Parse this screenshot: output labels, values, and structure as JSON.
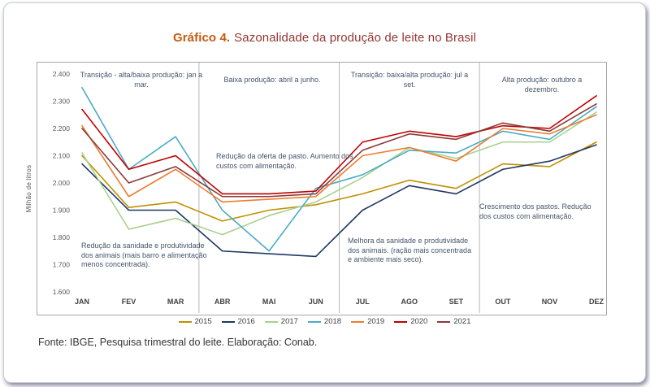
{
  "title": {
    "prefix": "Gráfico 4.",
    "text": "Sazonalidade da produção de leite no Brasil",
    "prefix_color": "#C55A11",
    "text_color": "#943634"
  },
  "footer": {
    "source": "Fonte: IBGE, Pesquisa trimestral do leite. Elaboração: Conab."
  },
  "annotations": {
    "q1_top": "Transição - alta/baixa produção: jan a mar.",
    "q2_top": "Baixa produção: abril a junho.",
    "q3_top": "Transição: baixa/alta produção: jul a set.",
    "q4_top": "Alta produção: outubro a dezembro.",
    "q1_bottom": "Redução da sanidade e produtividade dos animais (mais barro e alimentação menos concentrada).",
    "q2_mid": "Redução da oferta de pasto. Aumento dos custos com alimentação.",
    "q3_bottom": "Melhora da sanidade e produtividade dos animais. (ração mais concentrada e ambiente mais seco).",
    "q4_mid": "Crescimento dos pastos. Redução dos custos com alimentação."
  },
  "chart_data": {
    "type": "line",
    "title": "Gráfico 4. Sazonalidade da produção de leite no Brasil",
    "xlabel": "",
    "ylabel": "Milhão de litros",
    "ylim": [
      1600,
      2400
    ],
    "ytick_labels": [
      "2.400",
      "2.300",
      "2.200",
      "2.100",
      "2.000",
      "1.900",
      "1.800",
      "1.700",
      "1.600"
    ],
    "grid": false,
    "legend_position": "bottom",
    "quarter_dividers_after": [
      "MAR",
      "JUN",
      "SET"
    ],
    "categories": [
      "JAN",
      "FEV",
      "MAR",
      "ABR",
      "MAI",
      "JUN",
      "JUL",
      "AGO",
      "SET",
      "OUT",
      "NOV",
      "DEZ"
    ],
    "series": [
      {
        "name": "2015",
        "color": "#BF9000",
        "values": [
          2100,
          1910,
          1930,
          1860,
          1900,
          1920,
          1960,
          2010,
          1980,
          2070,
          2060,
          2150
        ]
      },
      {
        "name": "2016",
        "color": "#1F3864",
        "values": [
          2070,
          1900,
          1900,
          1750,
          1740,
          1730,
          1900,
          1990,
          1960,
          2050,
          2080,
          2140
        ]
      },
      {
        "name": "2017",
        "color": "#A9D18E",
        "values": [
          2110,
          1830,
          1870,
          1810,
          1880,
          1930,
          2020,
          2130,
          2090,
          2150,
          2150,
          2260
        ]
      },
      {
        "name": "2018",
        "color": "#4BACC6",
        "values": [
          2350,
          2050,
          2170,
          1900,
          1750,
          1980,
          2030,
          2120,
          2110,
          2190,
          2160,
          2280
        ]
      },
      {
        "name": "2019",
        "color": "#ED7D31",
        "values": [
          2210,
          1950,
          2050,
          1930,
          1940,
          1950,
          2100,
          2130,
          2080,
          2200,
          2180,
          2250
        ]
      },
      {
        "name": "2020",
        "color": "#C00000",
        "values": [
          2270,
          2050,
          2100,
          1960,
          1960,
          1970,
          2150,
          2190,
          2170,
          2210,
          2200,
          2320
        ]
      },
      {
        "name": "2021",
        "color": "#8B3A3A",
        "values": [
          2200,
          2000,
          2060,
          1950,
          1950,
          1960,
          2120,
          2180,
          2160,
          2220,
          2190,
          2290
        ]
      }
    ]
  }
}
